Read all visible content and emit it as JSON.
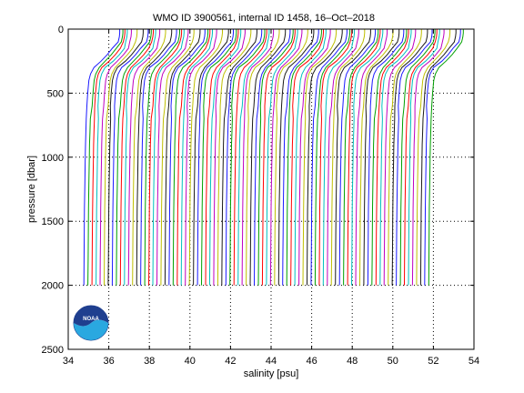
{
  "chart_data": {
    "type": "line",
    "title": "WMO ID 3900561, internal ID 1458, 16–Oct–2018",
    "xlabel": "salinity [psu]",
    "ylabel": "pressure [dbar]",
    "xlim": [
      34,
      54
    ],
    "ylim": [
      0,
      2500
    ],
    "y_reversed": true,
    "grid": "dotted",
    "x_ticks": [
      "34",
      "36",
      "38",
      "40",
      "42",
      "44",
      "46",
      "48",
      "50",
      "52",
      "54"
    ],
    "y_ticks": [
      "0",
      "500",
      "1000",
      "1500",
      "2000",
      "2500"
    ],
    "profile_offset_psu": 0.2,
    "series_colors": [
      "#1a1aff",
      "#00a000",
      "#ff0000",
      "#00bfbf",
      "#bf00bf",
      "#bfbf00",
      "#1a1a1a"
    ],
    "pressure_levels": [
      0,
      30,
      60,
      100,
      150,
      200,
      250,
      300,
      350,
      400,
      500,
      600,
      700,
      800,
      900,
      1000,
      1200,
      1400,
      1600,
      1800,
      2000
    ],
    "profile_template": [
      1.7,
      1.7,
      1.68,
      1.62,
      1.45,
      1.2,
      0.9,
      0.55,
      0.38,
      0.3,
      0.24,
      0.2,
      0.17,
      0.15,
      0.13,
      0.12,
      0.1,
      0.08,
      0.07,
      0.06,
      0.05
    ],
    "profiles_deep_base": [
      34.72,
      34.92,
      35.12,
      35.32,
      35.52,
      35.72,
      35.92,
      36.12,
      36.32,
      36.52,
      36.72,
      36.92,
      37.12,
      37.32,
      37.52,
      37.72,
      37.92,
      38.12,
      38.32,
      38.52,
      38.72,
      38.92,
      39.12,
      39.32,
      39.52,
      39.72,
      39.92,
      40.12,
      40.32,
      40.52,
      40.72,
      40.92,
      41.12,
      41.32,
      41.52,
      41.72,
      41.92,
      42.12,
      42.32,
      42.52,
      42.72,
      42.92,
      43.12,
      43.32,
      43.52,
      43.72,
      43.92,
      44.12,
      44.32,
      44.52,
      44.72,
      44.92,
      45.12,
      45.32,
      45.52,
      45.72,
      45.92,
      46.12,
      46.32,
      46.52,
      46.72,
      46.92,
      47.12,
      47.32,
      47.52,
      47.72,
      47.92,
      48.12,
      48.32,
      48.52,
      48.72,
      48.92,
      49.12,
      49.32,
      49.52,
      49.72,
      49.92,
      50.12,
      50.32,
      50.52,
      50.72,
      50.92,
      51.12,
      51.32,
      51.52,
      51.72
    ]
  },
  "logo": {
    "text": "NOAA"
  }
}
